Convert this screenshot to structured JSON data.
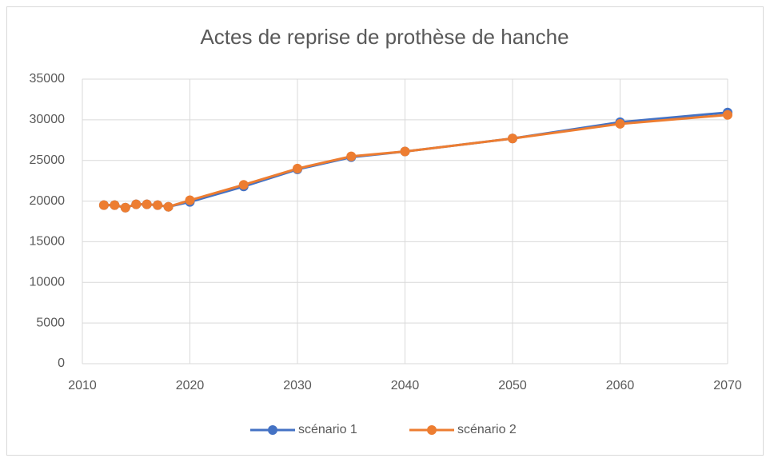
{
  "chart_data": {
    "type": "line",
    "title": "Actes de reprise de prothèse de hanche",
    "x": [
      2012,
      2013,
      2014,
      2015,
      2016,
      2017,
      2018,
      2020,
      2025,
      2030,
      2035,
      2040,
      2050,
      2060,
      2070
    ],
    "series": [
      {
        "name": "scénario 1",
        "color": "#4472c4",
        "values": [
          19500,
          19500,
          19200,
          19600,
          19600,
          19500,
          19300,
          19900,
          21800,
          23900,
          25400,
          26100,
          27700,
          29700,
          30900
        ]
      },
      {
        "name": "scénario 2",
        "color": "#ed7d31",
        "values": [
          19500,
          19500,
          19200,
          19600,
          19600,
          19500,
          19300,
          20100,
          22000,
          24000,
          25500,
          26100,
          27700,
          29500,
          30600
        ]
      }
    ],
    "xlim": [
      2010,
      2070
    ],
    "xticks": [
      2010,
      2020,
      2030,
      2040,
      2050,
      2060,
      2070
    ],
    "ylim": [
      0,
      35000
    ],
    "yticks": [
      0,
      5000,
      10000,
      15000,
      20000,
      25000,
      30000,
      35000
    ],
    "grid": true,
    "legend": "bottom"
  }
}
